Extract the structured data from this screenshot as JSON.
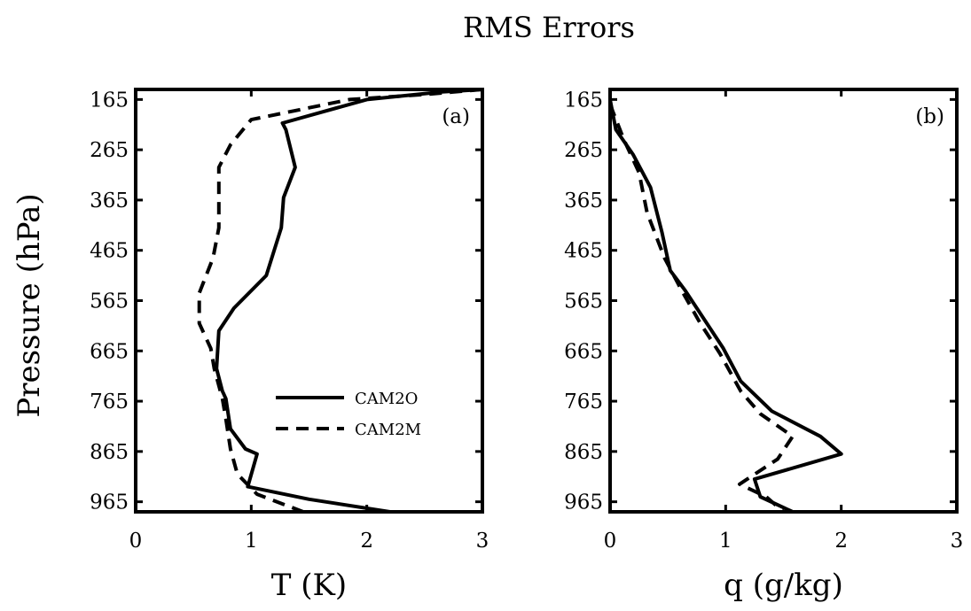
{
  "chart_data": {
    "title": "RMS Errors",
    "shared_ylabel": "Pressure (hPa)",
    "y_ticks": [
      165,
      265,
      365,
      465,
      565,
      665,
      765,
      865,
      965
    ],
    "ylim": [
      985,
      145
    ],
    "legend": [
      {
        "name": "CAM2O",
        "style": "solid"
      },
      {
        "name": "CAM2M",
        "style": "dashed"
      }
    ],
    "panels": [
      {
        "type": "line",
        "panel_label": "(a)",
        "xlabel": "T (K)",
        "x_ticks": [
          0,
          1,
          2,
          3
        ],
        "xlim": [
          0,
          3
        ],
        "series": [
          {
            "name": "CAM2O",
            "style": "solid",
            "points": [
              [
                3.0,
                145
              ],
              [
                2.65,
                150
              ],
              [
                2.0,
                165
              ],
              [
                1.27,
                212
              ],
              [
                1.3,
                225
              ],
              [
                1.38,
                300
              ],
              [
                1.28,
                360
              ],
              [
                1.26,
                420
              ],
              [
                1.13,
                515
              ],
              [
                0.85,
                580
              ],
              [
                0.72,
                625
              ],
              [
                0.7,
                700
              ],
              [
                0.75,
                745
              ],
              [
                0.78,
                760
              ],
              [
                0.82,
                820
              ],
              [
                0.95,
                860
              ],
              [
                1.05,
                870
              ],
              [
                0.97,
                935
              ],
              [
                1.5,
                960
              ],
              [
                2.2,
                985
              ]
            ]
          },
          {
            "name": "CAM2M",
            "style": "dashed",
            "points": [
              [
                3.0,
                145
              ],
              [
                2.5,
                155
              ],
              [
                1.85,
                165
              ],
              [
                1.0,
                205
              ],
              [
                0.82,
                255
              ],
              [
                0.72,
                300
              ],
              [
                0.72,
                370
              ],
              [
                0.72,
                420
              ],
              [
                0.67,
                480
              ],
              [
                0.55,
                550
              ],
              [
                0.55,
                610
              ],
              [
                0.65,
                660
              ],
              [
                0.68,
                700
              ],
              [
                0.75,
                760
              ],
              [
                0.78,
                800
              ],
              [
                0.82,
                860
              ],
              [
                0.88,
                910
              ],
              [
                1.05,
                950
              ],
              [
                1.45,
                985
              ]
            ]
          }
        ]
      },
      {
        "type": "line",
        "panel_label": "(b)",
        "xlabel": "q (g/kg)",
        "x_ticks": [
          0,
          1,
          2,
          3
        ],
        "xlim": [
          0,
          3
        ],
        "series": [
          {
            "name": "CAM2O",
            "style": "solid",
            "points": [
              [
                0.0,
                165
              ],
              [
                0.05,
                225
              ],
              [
                0.2,
                275
              ],
              [
                0.35,
                340
              ],
              [
                0.45,
                430
              ],
              [
                0.52,
                505
              ],
              [
                0.65,
                545
              ],
              [
                0.75,
                580
              ],
              [
                0.98,
                660
              ],
              [
                1.13,
                725
              ],
              [
                1.4,
                785
              ],
              [
                1.82,
                835
              ],
              [
                2.0,
                870
              ],
              [
                1.25,
                920
              ],
              [
                1.3,
                955
              ],
              [
                1.58,
                985
              ]
            ]
          },
          {
            "name": "CAM2M",
            "style": "dashed",
            "points": [
              [
                0.0,
                175
              ],
              [
                0.12,
                245
              ],
              [
                0.25,
                310
              ],
              [
                0.32,
                390
              ],
              [
                0.47,
                480
              ],
              [
                0.62,
                545
              ],
              [
                0.78,
                610
              ],
              [
                0.95,
                670
              ],
              [
                1.13,
                745
              ],
              [
                1.3,
                790
              ],
              [
                1.58,
                835
              ],
              [
                1.45,
                880
              ],
              [
                1.12,
                930
              ],
              [
                1.35,
                955
              ],
              [
                1.5,
                985
              ]
            ]
          }
        ]
      }
    ]
  }
}
